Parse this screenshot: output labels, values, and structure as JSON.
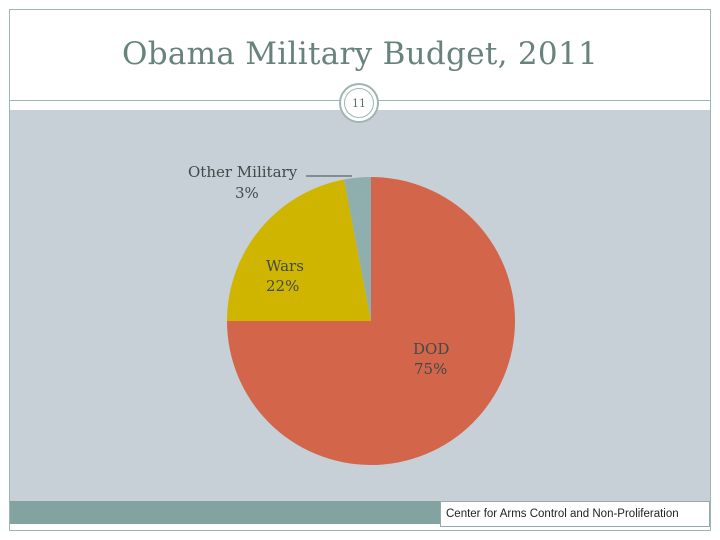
{
  "slide": {
    "title": "Obama Military Budget, 2011",
    "page_number": "11",
    "source": "Center for Arms Control and Non-Proliferation"
  },
  "colors": {
    "title": "#68827c",
    "panel_background": "#c7d0d6",
    "footer_bar": "#82a3a0"
  },
  "chart_data": {
    "type": "pie",
    "title": "",
    "slices": [
      {
        "label": "DOD",
        "value": 75,
        "value_label": "75%",
        "color": "#d3654a"
      },
      {
        "label": "Wars",
        "value": 22,
        "value_label": "22%",
        "color": "#cfb500"
      },
      {
        "label": "Other Military",
        "value": 3,
        "value_label": "3%",
        "color": "#8faeae"
      }
    ],
    "start_angle": "12 o'clock",
    "direction": "clockwise",
    "legend": "none",
    "labels": "inside slices (Other Military outside with leader line)"
  }
}
